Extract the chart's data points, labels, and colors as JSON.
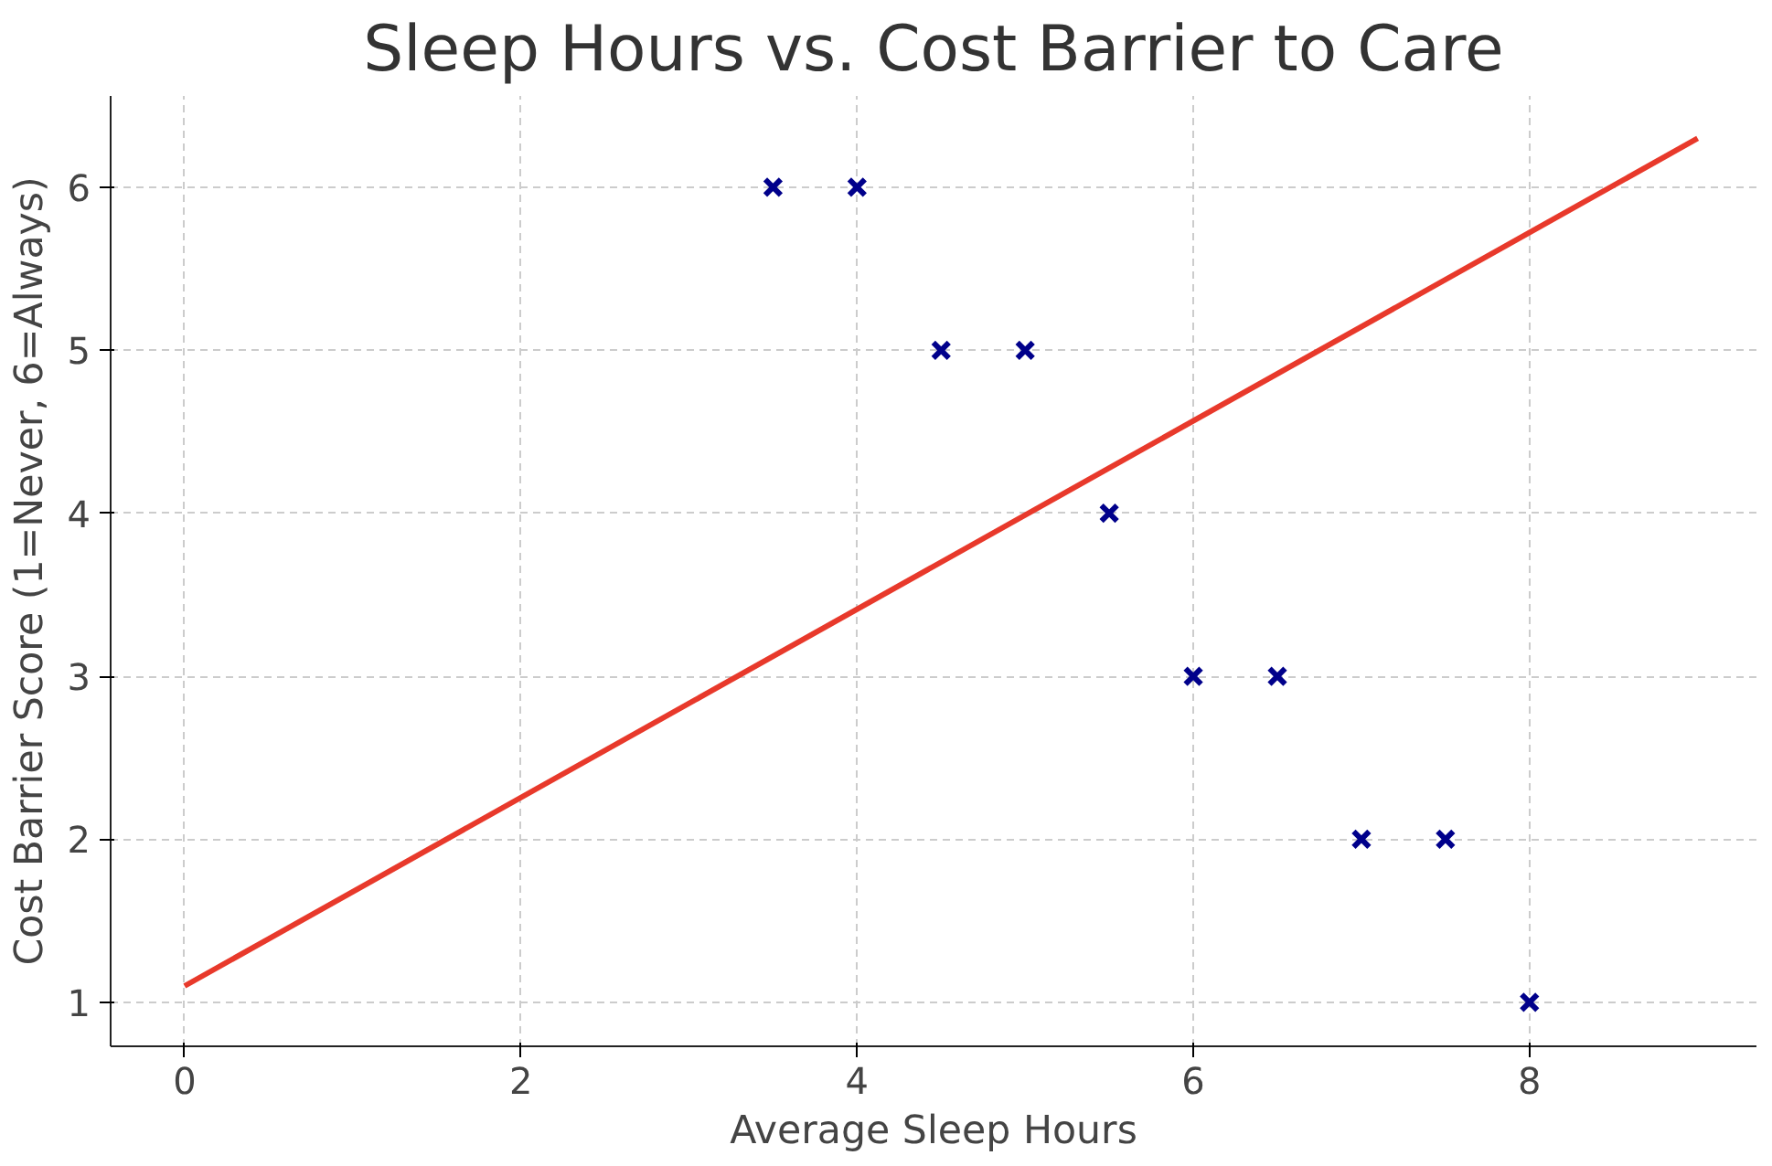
{
  "chart_data": {
    "type": "scatter",
    "title": "Sleep Hours vs. Cost Barrier to Care",
    "xlabel": "Average Sleep Hours",
    "ylabel": "Cost Barrier Score (1=Never, 6=Always)",
    "xlim": [
      -0.44,
      9.35
    ],
    "ylim": [
      0.73,
      6.56
    ],
    "xticks": [
      0,
      2,
      4,
      6,
      8
    ],
    "yticks": [
      1,
      2,
      3,
      4,
      5,
      6
    ],
    "grid": true,
    "marker": "cross",
    "series": [
      {
        "color": "#00008b",
        "x": [
          3.5,
          4,
          4.5,
          5,
          5.5,
          6,
          6.5,
          7,
          7.5,
          8
        ],
        "values": [
          6,
          6,
          5,
          5,
          4,
          3,
          3,
          2,
          2,
          1
        ]
      },
      {
        "type": "line",
        "color": "#e8392b",
        "x": [
          0,
          9
        ],
        "values": [
          1.1,
          6.3
        ],
        "marker": "none"
      }
    ]
  }
}
